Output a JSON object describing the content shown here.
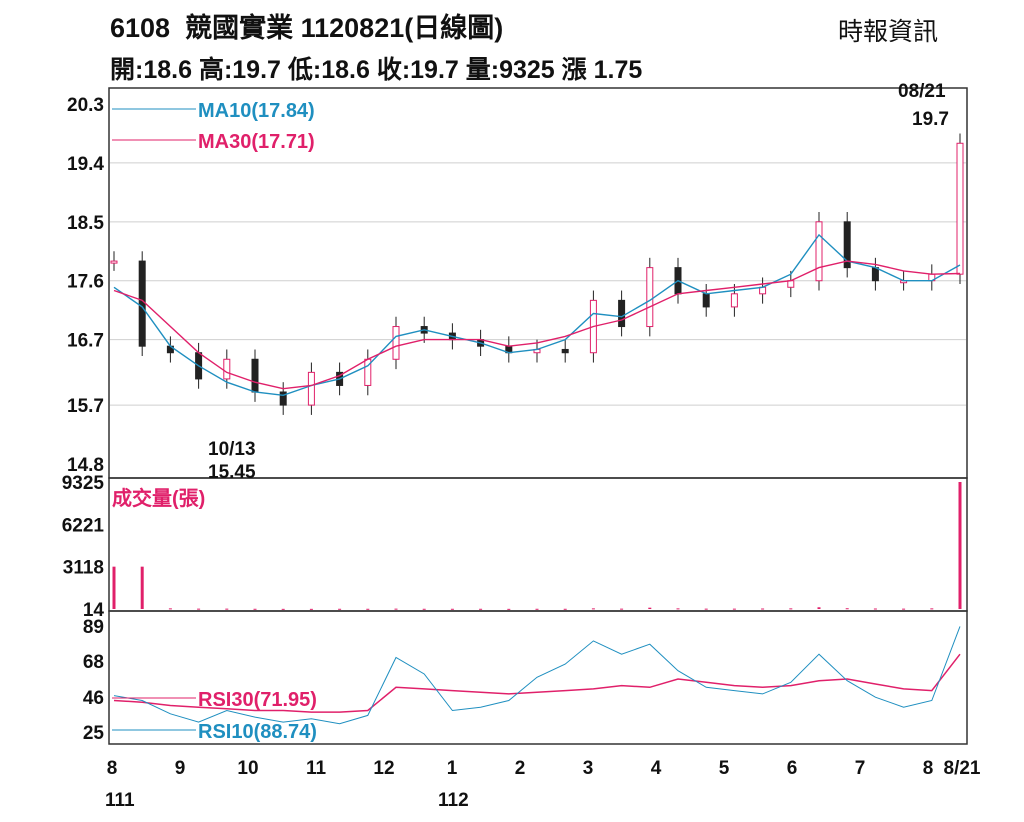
{
  "header": {
    "code": "6108",
    "name": "競國實業",
    "date_label": "1120821(日線圖)",
    "source": "時報資訊",
    "open": "開:18.6",
    "high": "高:19.7",
    "low": "低:18.6",
    "close": "收:19.7",
    "volume": "量:9325",
    "change": "漲 1.75"
  },
  "chart_data": [
    {
      "type": "line",
      "panel": "price",
      "y_ticks": [
        "20.3",
        "19.4",
        "18.5",
        "17.6",
        "16.7",
        "15.7",
        "14.8"
      ],
      "ylim": [
        14.8,
        20.3
      ],
      "grid": true,
      "series": [
        {
          "name": "MA10(17.84)",
          "color": "#1f8fc0",
          "values": [
            17.5,
            17.2,
            16.6,
            16.3,
            16.05,
            15.9,
            15.85,
            16.0,
            16.1,
            16.3,
            16.75,
            16.85,
            16.75,
            16.65,
            16.5,
            16.55,
            16.7,
            17.1,
            17.05,
            17.3,
            17.6,
            17.4,
            17.45,
            17.5,
            17.7,
            18.3,
            17.9,
            17.8,
            17.6,
            17.6,
            17.84
          ]
        },
        {
          "name": "MA30(17.71)",
          "color": "#e0206a",
          "values": [
            17.45,
            17.3,
            16.9,
            16.5,
            16.2,
            16.05,
            15.95,
            16.0,
            16.15,
            16.4,
            16.6,
            16.7,
            16.7,
            16.7,
            16.6,
            16.65,
            16.75,
            16.9,
            17.0,
            17.2,
            17.4,
            17.45,
            17.5,
            17.55,
            17.6,
            17.8,
            17.9,
            17.85,
            17.75,
            17.7,
            17.71
          ]
        },
        {
          "name": "daily",
          "color": "#222222",
          "values": [
            17.9,
            16.6,
            16.5,
            16.1,
            16.4,
            15.9,
            15.7,
            16.2,
            16.0,
            16.4,
            16.9,
            16.8,
            16.7,
            16.6,
            16.5,
            16.55,
            16.5,
            17.3,
            16.9,
            17.8,
            17.4,
            17.2,
            17.4,
            17.5,
            17.6,
            18.5,
            17.8,
            17.6,
            17.6,
            17.7,
            19.7
          ]
        }
      ],
      "annotations": [
        {
          "text": "10/13",
          "value": "15.45"
        },
        {
          "text": "08/21",
          "value": "19.7"
        }
      ]
    },
    {
      "type": "bar",
      "panel": "volume",
      "title": "成交量(張)",
      "y_ticks": [
        "9325",
        "6221",
        "3118",
        "14"
      ],
      "ylim": [
        14,
        9325
      ],
      "color": "#e0206a",
      "values": [
        3118,
        3118,
        60,
        40,
        40,
        30,
        25,
        25,
        30,
        30,
        40,
        30,
        30,
        30,
        25,
        30,
        30,
        60,
        40,
        110,
        60,
        40,
        40,
        50,
        60,
        140,
        70,
        50,
        40,
        60,
        9325
      ]
    },
    {
      "type": "line",
      "panel": "rsi",
      "y_ticks": [
        "89",
        "68",
        "46",
        "25"
      ],
      "ylim": [
        25,
        89
      ],
      "series": [
        {
          "name": "RSI30(71.95)",
          "color": "#e0206a",
          "values": [
            44,
            43,
            41,
            40,
            39,
            38,
            38,
            37,
            37,
            38,
            52,
            51,
            50,
            49,
            48,
            49,
            50,
            51,
            53,
            52,
            57,
            55,
            53,
            52,
            53,
            56,
            57,
            54,
            51,
            50,
            71.95
          ]
        },
        {
          "name": "RSI10(88.74)",
          "color": "#1f8fc0",
          "values": [
            47,
            44,
            36,
            31,
            38,
            34,
            31,
            33,
            30,
            35,
            70,
            60,
            38,
            40,
            44,
            58,
            66,
            80,
            72,
            78,
            62,
            52,
            50,
            48,
            55,
            72,
            56,
            46,
            40,
            44,
            88.74
          ]
        }
      ]
    }
  ],
  "x_axis": {
    "month_labels": [
      "8",
      "9",
      "10",
      "11",
      "12",
      "1",
      "2",
      "3",
      "4",
      "5",
      "6",
      "7",
      "8",
      "8/21"
    ],
    "year_labels": [
      "111",
      "112"
    ]
  }
}
